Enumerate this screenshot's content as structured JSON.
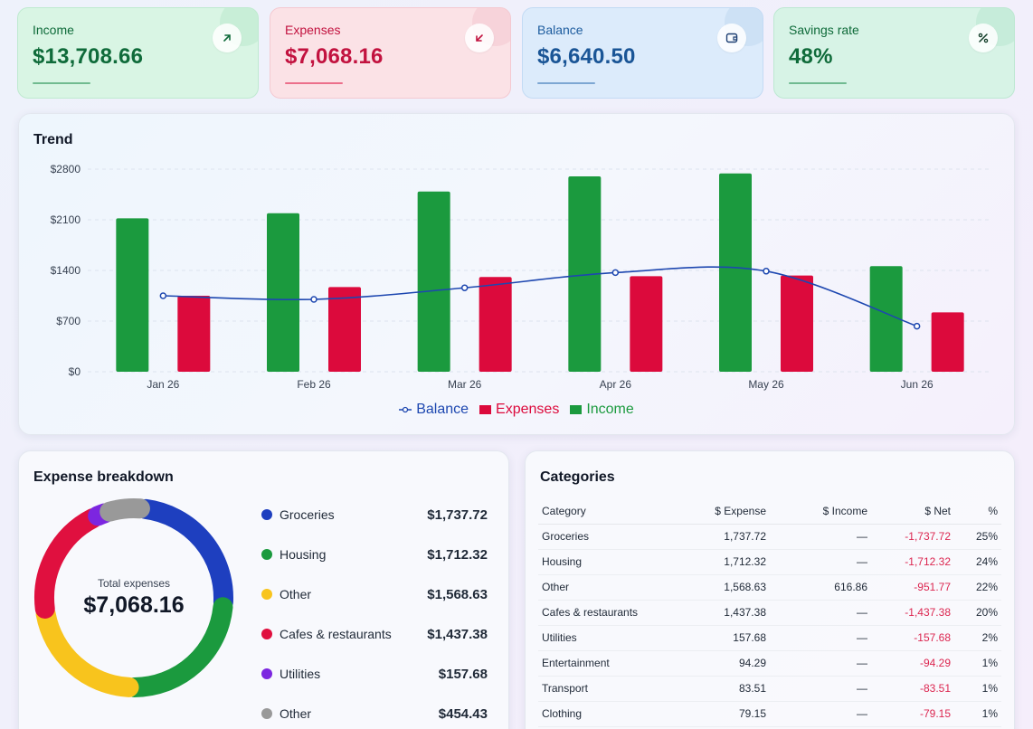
{
  "kpis": [
    {
      "label": "Income",
      "value": "$13,708.66",
      "icon": "arrow-up-right-icon"
    },
    {
      "label": "Expenses",
      "value": "$7,068.16",
      "icon": "arrow-down-left-icon"
    },
    {
      "label": "Balance",
      "value": "$6,640.50",
      "icon": "wallet-icon"
    },
    {
      "label": "Savings rate",
      "value": "48%",
      "icon": "percent-icon"
    }
  ],
  "colors": {
    "income": "#1b9a3e",
    "expenses": "#dc0a3c",
    "balance": "#1d47b0",
    "groceries": "#1e3fbf",
    "housing": "#1b9a3e",
    "other": "#f8c41d",
    "cafes": "#e0103f",
    "utilities": "#7c26e0",
    "other2": "#999999"
  },
  "trend": {
    "title": "Trend",
    "chart_data": {
      "type": "bar",
      "categories": [
        "Jan 26",
        "Feb 26",
        "Mar 26",
        "Apr 26",
        "May 26",
        "Jun 26"
      ],
      "series": [
        {
          "name": "Income",
          "values": [
            2120,
            2190,
            2490,
            2700,
            2740,
            1460
          ]
        },
        {
          "name": "Expenses",
          "values": [
            1050,
            1170,
            1310,
            1320,
            1330,
            820
          ]
        },
        {
          "name": "Balance",
          "values": [
            1050,
            1000,
            1160,
            1370,
            1390,
            630
          ],
          "type": "line"
        }
      ],
      "ylim": [
        0,
        2800
      ],
      "yticks": [
        "$2800",
        "$2100",
        "$1400",
        "$700",
        "$0"
      ],
      "legend": "bottom",
      "grid": true
    },
    "legend": [
      {
        "label": "Balance"
      },
      {
        "label": "Expenses"
      },
      {
        "label": "Income"
      }
    ]
  },
  "breakdown": {
    "title": "Expense breakdown",
    "center_label": "Total expenses",
    "center_value": "$7,068.16",
    "items": [
      {
        "name": "Groceries",
        "value": "$1,737.72",
        "amount": 1737.72,
        "color": "#1e3fbf"
      },
      {
        "name": "Housing",
        "value": "$1,712.32",
        "amount": 1712.32,
        "color": "#1b9a3e"
      },
      {
        "name": "Other",
        "value": "$1,568.63",
        "amount": 1568.63,
        "color": "#f8c41d"
      },
      {
        "name": "Cafes & restaurants",
        "value": "$1,437.38",
        "amount": 1437.38,
        "color": "#e0103f"
      },
      {
        "name": "Utilities",
        "value": "$157.68",
        "amount": 157.68,
        "color": "#7c26e0"
      },
      {
        "name": "Other",
        "value": "$454.43",
        "amount": 454.43,
        "color": "#999999"
      }
    ]
  },
  "categories": {
    "title": "Categories",
    "headers": [
      "Category",
      "$ Expense",
      "$ Income",
      "$ Net",
      "%"
    ],
    "rows": [
      [
        "Groceries",
        "1,737.72",
        "—",
        "-1,737.72",
        "25%"
      ],
      [
        "Housing",
        "1,712.32",
        "—",
        "-1,712.32",
        "24%"
      ],
      [
        "Other",
        "1,568.63",
        "616.86",
        "-951.77",
        "22%"
      ],
      [
        "Cafes & restaurants",
        "1,437.38",
        "—",
        "-1,437.38",
        "20%"
      ],
      [
        "Utilities",
        "157.68",
        "—",
        "-157.68",
        "2%"
      ],
      [
        "Entertainment",
        "94.29",
        "—",
        "-94.29",
        "1%"
      ],
      [
        "Transport",
        "83.51",
        "—",
        "-83.51",
        "1%"
      ],
      [
        "Clothing",
        "79.15",
        "—",
        "-79.15",
        "1%"
      ]
    ]
  }
}
